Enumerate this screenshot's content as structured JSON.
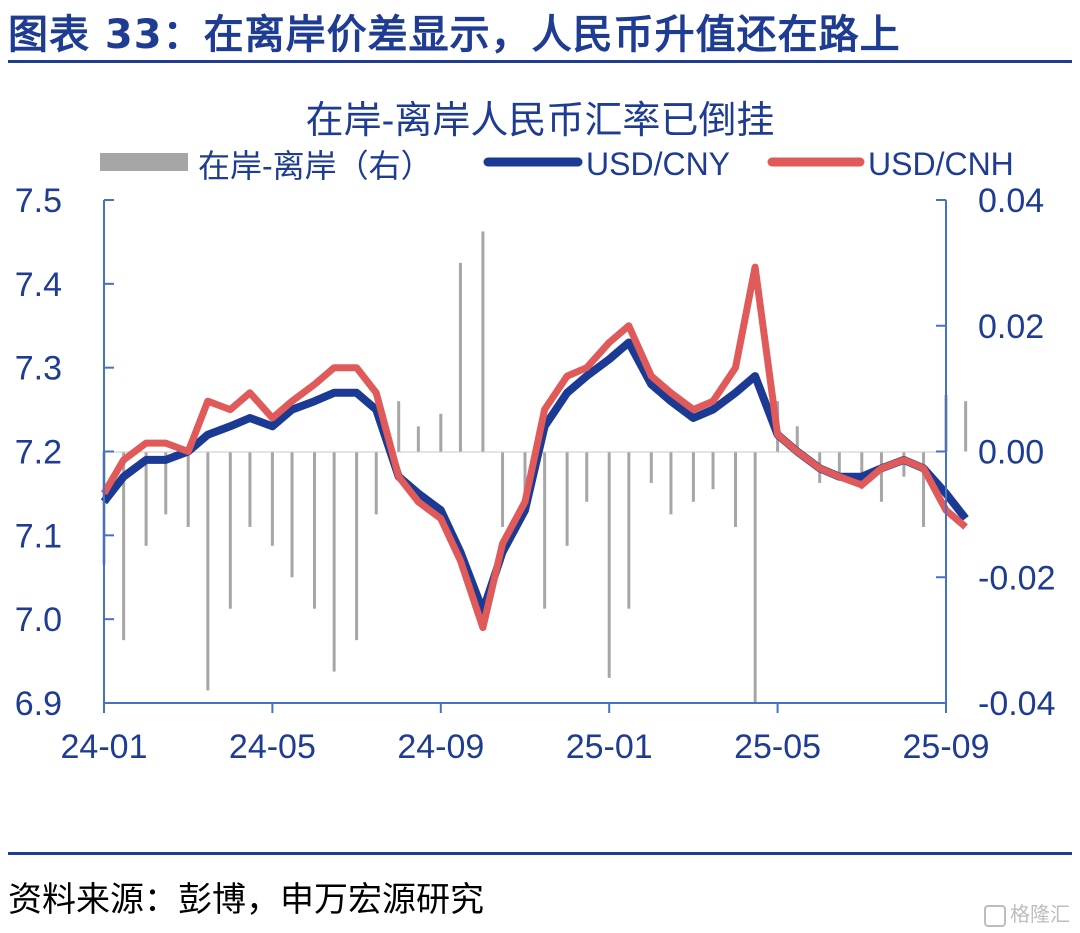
{
  "header": {
    "title": "图表 33：在离岸价差显示，人民币升值还在路上"
  },
  "footer": {
    "source": "资料来源：彭博，申万宏源研究"
  },
  "watermark": {
    "text": "格隆汇"
  },
  "colors": {
    "brand_blue": "#1f3c93",
    "cny_line": "#1a3a94",
    "cnh_line": "#e05a5a",
    "spread_bar": "#a6a6a6",
    "axis": "#4472c4"
  },
  "chart_data": {
    "type": "line",
    "title": "在岸-离岸人民币汇率已倒挂",
    "legend": {
      "placement": "top",
      "items": [
        "在岸-离岸（右）",
        "USD/CNY",
        "USD/CNH"
      ]
    },
    "x_tick_labels": [
      "24-01",
      "24-05",
      "24-09",
      "25-01",
      "25-05",
      "25-09"
    ],
    "x_range": [
      "2024-01",
      "2025-09"
    ],
    "y_left": {
      "ticks": [
        "7.5",
        "7.4",
        "7.3",
        "7.2",
        "7.1",
        "7.0",
        "6.9"
      ],
      "ylim": [
        6.9,
        7.5
      ]
    },
    "y_right": {
      "ticks": [
        "0.04",
        "0.02",
        "0.00",
        "-0.02",
        "-0.04"
      ],
      "ylim": [
        -0.04,
        0.04
      ]
    },
    "grid": false,
    "series": [
      {
        "name": "USD/CNY",
        "axis": "left",
        "kind": "line",
        "x": [
          "2024-01",
          "2024-01-15",
          "2024-02",
          "2024-02-15",
          "2024-03",
          "2024-03-15",
          "2024-04",
          "2024-04-15",
          "2024-05",
          "2024-05-15",
          "2024-06",
          "2024-06-15",
          "2024-07",
          "2024-07-15",
          "2024-08",
          "2024-08-15",
          "2024-09",
          "2024-09-15",
          "2024-10",
          "2024-10-15",
          "2024-11",
          "2024-11-15",
          "2024-12",
          "2024-12-15",
          "2025-01",
          "2025-01-15",
          "2025-02",
          "2025-02-15",
          "2025-03",
          "2025-03-15",
          "2025-04",
          "2025-04-15",
          "2025-05",
          "2025-05-15",
          "2025-06",
          "2025-06-15",
          "2025-07",
          "2025-07-15",
          "2025-08",
          "2025-08-15",
          "2025-09",
          "2025-09-15"
        ],
        "values": [
          7.14,
          7.17,
          7.19,
          7.19,
          7.2,
          7.22,
          7.23,
          7.24,
          7.23,
          7.25,
          7.26,
          7.27,
          7.27,
          7.25,
          7.17,
          7.15,
          7.13,
          7.08,
          7.01,
          7.08,
          7.13,
          7.23,
          7.27,
          7.29,
          7.31,
          7.33,
          7.28,
          7.26,
          7.24,
          7.25,
          7.27,
          7.29,
          7.22,
          7.2,
          7.18,
          7.17,
          7.17,
          7.18,
          7.19,
          7.18,
          7.15,
          7.12
        ]
      },
      {
        "name": "USD/CNH",
        "axis": "left",
        "kind": "line",
        "x": [
          "2024-01",
          "2024-01-15",
          "2024-02",
          "2024-02-15",
          "2024-03",
          "2024-03-15",
          "2024-04",
          "2024-04-15",
          "2024-05",
          "2024-05-15",
          "2024-06",
          "2024-06-15",
          "2024-07",
          "2024-07-15",
          "2024-08",
          "2024-08-15",
          "2024-09",
          "2024-09-15",
          "2024-10",
          "2024-10-15",
          "2024-11",
          "2024-11-15",
          "2024-12",
          "2024-12-15",
          "2025-01",
          "2025-01-15",
          "2025-02",
          "2025-02-15",
          "2025-03",
          "2025-03-15",
          "2025-04",
          "2025-04-15",
          "2025-05",
          "2025-05-15",
          "2025-06",
          "2025-06-15",
          "2025-07",
          "2025-07-15",
          "2025-08",
          "2025-08-15",
          "2025-09",
          "2025-09-15"
        ],
        "values": [
          7.15,
          7.19,
          7.21,
          7.21,
          7.2,
          7.26,
          7.25,
          7.27,
          7.24,
          7.26,
          7.28,
          7.3,
          7.3,
          7.27,
          7.17,
          7.14,
          7.12,
          7.07,
          6.99,
          7.09,
          7.14,
          7.25,
          7.29,
          7.3,
          7.33,
          7.35,
          7.29,
          7.27,
          7.25,
          7.26,
          7.3,
          7.42,
          7.22,
          7.2,
          7.18,
          7.17,
          7.16,
          7.18,
          7.19,
          7.18,
          7.13,
          7.11
        ]
      },
      {
        "name": "在岸-离岸（右）",
        "axis": "right",
        "kind": "bar",
        "x": [
          "2024-01",
          "2024-01-15",
          "2024-02",
          "2024-02-15",
          "2024-03",
          "2024-03-15",
          "2024-04",
          "2024-04-15",
          "2024-05",
          "2024-05-15",
          "2024-06",
          "2024-06-15",
          "2024-07",
          "2024-07-15",
          "2024-08",
          "2024-08-15",
          "2024-09",
          "2024-09-15",
          "2024-10",
          "2024-10-15",
          "2024-11",
          "2024-11-15",
          "2024-12",
          "2024-12-15",
          "2025-01",
          "2025-01-15",
          "2025-02",
          "2025-02-15",
          "2025-03",
          "2025-03-15",
          "2025-04",
          "2025-04-15",
          "2025-05",
          "2025-05-15",
          "2025-06",
          "2025-06-15",
          "2025-07",
          "2025-07-15",
          "2025-08",
          "2025-08-15",
          "2025-09",
          "2025-09-15"
        ],
        "values": [
          -0.018,
          -0.03,
          -0.015,
          -0.01,
          -0.012,
          -0.038,
          -0.025,
          -0.012,
          -0.015,
          -0.02,
          -0.025,
          -0.035,
          -0.03,
          -0.01,
          0.008,
          0.004,
          0.006,
          0.03,
          0.035,
          -0.012,
          -0.008,
          -0.025,
          -0.015,
          -0.008,
          -0.036,
          -0.025,
          -0.005,
          -0.01,
          -0.008,
          -0.006,
          -0.012,
          -0.04,
          0.008,
          0.004,
          -0.005,
          -0.004,
          -0.006,
          -0.008,
          -0.004,
          -0.012,
          0.009,
          0.008
        ]
      }
    ]
  }
}
